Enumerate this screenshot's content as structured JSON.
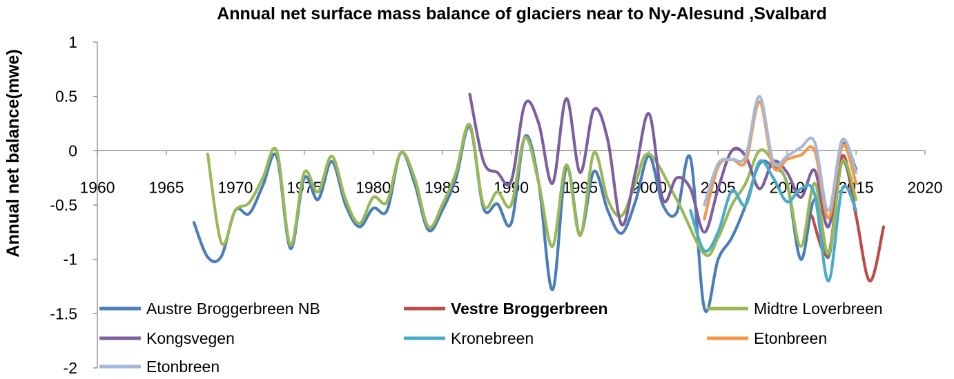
{
  "chart_data": {
    "type": "line",
    "title": "Annual net surface mass balance of  glaciers near to Ny-Alesund ,Svalbard",
    "xlabel": "",
    "ylabel": "Annual net balance(mwe)",
    "xlim": [
      1960,
      2020
    ],
    "ylim": [
      -2,
      1
    ],
    "x_ticks": [
      1960,
      1965,
      1970,
      1975,
      1980,
      1985,
      1990,
      1995,
      2000,
      2005,
      2010,
      2015,
      2020
    ],
    "y_ticks": [
      1,
      0.5,
      0,
      -0.5,
      -1,
      -1.5,
      -2
    ],
    "y_tick_labels": [
      "1",
      "0.5",
      "0",
      "-0.5",
      "-1",
      "-1.5",
      "-2"
    ],
    "grid": false,
    "legend_position": "bottom",
    "series": [
      {
        "name": "Austre Broggerbreen  NB",
        "color": "#4a7ebb",
        "bold": false,
        "points": [
          [
            1967,
            -0.66
          ],
          [
            1968,
            -0.98
          ],
          [
            1969,
            -0.97
          ],
          [
            1970,
            -0.55
          ],
          [
            1971,
            -0.58
          ],
          [
            1972,
            -0.32
          ],
          [
            1973,
            -0.05
          ],
          [
            1974,
            -0.9
          ],
          [
            1975,
            -0.25
          ],
          [
            1976,
            -0.45
          ],
          [
            1977,
            -0.1
          ],
          [
            1978,
            -0.5
          ],
          [
            1979,
            -0.7
          ],
          [
            1980,
            -0.53
          ],
          [
            1981,
            -0.55
          ],
          [
            1982,
            -0.02
          ],
          [
            1983,
            -0.3
          ],
          [
            1984,
            -0.73
          ],
          [
            1985,
            -0.55
          ],
          [
            1986,
            -0.25
          ],
          [
            1987,
            0.22
          ],
          [
            1988,
            -0.53
          ],
          [
            1989,
            -0.49
          ],
          [
            1990,
            -0.67
          ],
          [
            1991,
            0.13
          ],
          [
            1992,
            -0.3
          ],
          [
            1993,
            -1.28
          ],
          [
            1994,
            -0.15
          ],
          [
            1995,
            -0.77
          ],
          [
            1996,
            -0.19
          ],
          [
            1997,
            -0.55
          ],
          [
            1998,
            -0.76
          ],
          [
            1999,
            -0.47
          ],
          [
            2000,
            -0.05
          ],
          [
            2001,
            -0.5
          ],
          [
            2002,
            -0.57
          ],
          [
            2003,
            -0.07
          ],
          [
            2004,
            -1.45
          ],
          [
            2005,
            -1.0
          ],
          [
            2006,
            -0.8
          ],
          [
            2007,
            -0.5
          ],
          [
            2008,
            -0.12
          ],
          [
            2009,
            -0.15
          ],
          [
            2010,
            -0.3
          ],
          [
            2011,
            -1.0
          ],
          [
            2012,
            -0.45
          ],
          [
            2013,
            -0.98
          ],
          [
            2014,
            -0.1
          ],
          [
            2015,
            -0.58
          ]
        ]
      },
      {
        "name": "Vestre Broggerbreen",
        "color": "#be4b48",
        "bold": true,
        "points": [
          [
            2011.8,
            -0.6
          ],
          [
            2013,
            -0.95
          ],
          [
            2014,
            -0.05
          ],
          [
            2015,
            -0.6
          ],
          [
            2016,
            -1.2
          ],
          [
            2017,
            -0.7
          ]
        ]
      },
      {
        "name": "Midtre Loverbreen",
        "color": "#98b954",
        "bold": false,
        "points": [
          [
            1968,
            -0.03
          ],
          [
            1969,
            -0.85
          ],
          [
            1970,
            -0.55
          ],
          [
            1971,
            -0.48
          ],
          [
            1972,
            -0.25
          ],
          [
            1973,
            0.0
          ],
          [
            1974,
            -0.87
          ],
          [
            1975,
            -0.2
          ],
          [
            1976,
            -0.38
          ],
          [
            1977,
            -0.05
          ],
          [
            1978,
            -0.45
          ],
          [
            1979,
            -0.67
          ],
          [
            1980,
            -0.43
          ],
          [
            1981,
            -0.47
          ],
          [
            1982,
            -0.02
          ],
          [
            1983,
            -0.25
          ],
          [
            1984,
            -0.7
          ],
          [
            1985,
            -0.5
          ],
          [
            1986,
            -0.2
          ],
          [
            1987,
            0.24
          ],
          [
            1988,
            -0.5
          ],
          [
            1989,
            -0.38
          ],
          [
            1990,
            -0.5
          ],
          [
            1991,
            0.12
          ],
          [
            1992,
            -0.3
          ],
          [
            1993,
            -0.88
          ],
          [
            1994,
            -0.13
          ],
          [
            1995,
            -0.78
          ],
          [
            1996,
            -0.02
          ],
          [
            1997,
            -0.45
          ],
          [
            1998,
            -0.6
          ],
          [
            1999,
            -0.3
          ],
          [
            2000,
            -0.03
          ],
          [
            2002,
            -0.45
          ],
          [
            2004,
            -0.95
          ],
          [
            2005,
            -0.8
          ],
          [
            2006,
            -0.5
          ],
          [
            2007,
            -0.3
          ],
          [
            2008,
            0.0
          ],
          [
            2009,
            -0.1
          ],
          [
            2010,
            -0.3
          ],
          [
            2011,
            -0.88
          ],
          [
            2012,
            -0.3
          ],
          [
            2013,
            -0.95
          ],
          [
            2014,
            -0.1
          ],
          [
            2015,
            -0.45
          ]
        ]
      },
      {
        "name": "Kongsvegen",
        "color": "#7d5fa0",
        "bold": false,
        "points": [
          [
            1987,
            0.52
          ],
          [
            1988,
            -0.1
          ],
          [
            1989,
            -0.2
          ],
          [
            1990,
            -0.28
          ],
          [
            1991,
            0.43
          ],
          [
            1992,
            0.25
          ],
          [
            1993,
            -0.3
          ],
          [
            1994,
            0.48
          ],
          [
            1995,
            -0.2
          ],
          [
            1996,
            0.38
          ],
          [
            1997,
            0.1
          ],
          [
            1998,
            -0.68
          ],
          [
            1999,
            -0.2
          ],
          [
            2000,
            0.34
          ],
          [
            2001,
            -0.45
          ],
          [
            2002,
            -0.25
          ],
          [
            2003,
            -0.35
          ],
          [
            2004,
            -0.75
          ],
          [
            2005,
            -0.35
          ],
          [
            2006,
            0.0
          ],
          [
            2007,
            -0.05
          ],
          [
            2008,
            -0.35
          ],
          [
            2009,
            -0.1
          ],
          [
            2010,
            -0.2
          ],
          [
            2011,
            -0.43
          ],
          [
            2012,
            -0.18
          ],
          [
            2013,
            -0.7
          ],
          [
            2014,
            0.05
          ],
          [
            2015,
            -0.17
          ]
        ]
      },
      {
        "name": "Kronebreen",
        "color": "#4aacc6",
        "bold": false,
        "points": [
          [
            2003,
            -0.55
          ],
          [
            2004,
            -0.92
          ],
          [
            2005,
            -0.75
          ],
          [
            2006,
            -0.37
          ],
          [
            2007,
            -0.5
          ],
          [
            2008,
            -0.1
          ],
          [
            2009,
            -0.25
          ],
          [
            2010,
            -0.47
          ],
          [
            2011,
            -0.35
          ],
          [
            2012,
            -0.4
          ],
          [
            2013,
            -1.2
          ],
          [
            2014,
            -0.35
          ],
          [
            2015,
            -0.55
          ]
        ]
      },
      {
        "name": "Etonbreen",
        "color": "#f79646",
        "bold": false,
        "points": [
          [
            2004,
            -0.63
          ],
          [
            2005,
            -0.15
          ],
          [
            2006,
            -0.08
          ],
          [
            2007,
            -0.1
          ],
          [
            2008,
            0.45
          ],
          [
            2009,
            -0.15
          ],
          [
            2010,
            -0.08
          ],
          [
            2011,
            -0.04
          ],
          [
            2012,
            0.0
          ],
          [
            2013,
            -0.62
          ],
          [
            2014,
            0.05
          ],
          [
            2015,
            -0.3
          ]
        ]
      },
      {
        "name": "Etonbreen",
        "color": "#a5b8d9",
        "bold": false,
        "points": [
          [
            2004,
            -0.5
          ],
          [
            2005,
            -0.12
          ],
          [
            2006,
            -0.08
          ],
          [
            2007,
            -0.05
          ],
          [
            2008,
            0.5
          ],
          [
            2009,
            -0.1
          ],
          [
            2010,
            -0.05
          ],
          [
            2011,
            0.03
          ],
          [
            2012,
            0.08
          ],
          [
            2013,
            -0.55
          ],
          [
            2014,
            0.1
          ],
          [
            2015,
            -0.2
          ]
        ]
      }
    ]
  }
}
